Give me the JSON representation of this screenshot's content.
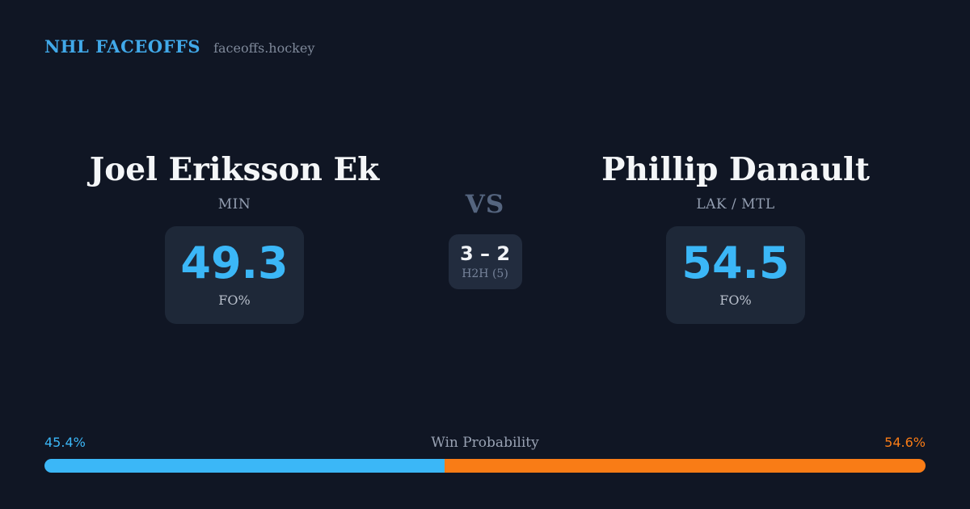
{
  "header": {
    "title": "NHL FACEOFFS",
    "site": "faceoffs.hockey"
  },
  "matchup": {
    "left_player": {
      "name": "Joel Eriksson Ek",
      "team": "MIN",
      "fo_pct": "49.3",
      "fo_label": "FO%"
    },
    "right_player": {
      "name": "Phillip Danault",
      "team": "LAK / MTL",
      "fo_pct": "54.5",
      "fo_label": "FO%"
    },
    "center": {
      "vs_label": "VS",
      "h2h_score": "3 – 2",
      "h2h_label": "H2H (5)"
    }
  },
  "win_probability": {
    "label": "Win Probability",
    "left_pct_label": "45.4%",
    "right_pct_label": "54.6%",
    "left_value": 45.4,
    "right_value": 54.6
  },
  "colors": {
    "background": "#101624",
    "card": "#1e2838",
    "accent_blue": "#3bb7f7",
    "accent_orange": "#f97c16"
  }
}
